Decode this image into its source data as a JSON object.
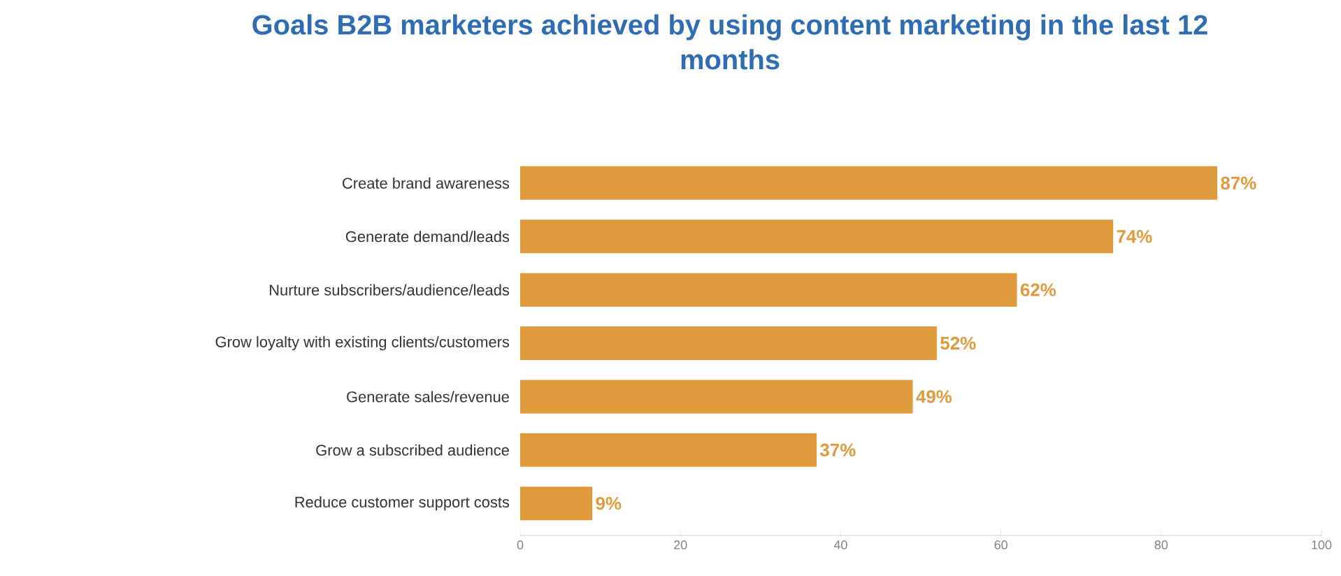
{
  "chart_data": {
    "type": "bar",
    "orientation": "horizontal",
    "title": "Goals B2B marketers achieved by using content marketing in the last 12 months",
    "categories": [
      "Create brand awareness",
      "Generate demand/leads",
      "Nurture subscribers/audience/leads",
      "Grow loyalty with existing clients/customers",
      "Generate sales/revenue",
      "Grow a subscribed audience",
      "Reduce customer support costs"
    ],
    "values": [
      87,
      74,
      62,
      52,
      49,
      37,
      9
    ],
    "value_labels": [
      "87%",
      "74%",
      "62%",
      "52%",
      "49%",
      "37%",
      "9%"
    ],
    "color": "#e09a3c",
    "xlim": [
      0,
      100
    ],
    "xticks": [
      0,
      20,
      40,
      60,
      80,
      100
    ],
    "grid": false
  }
}
